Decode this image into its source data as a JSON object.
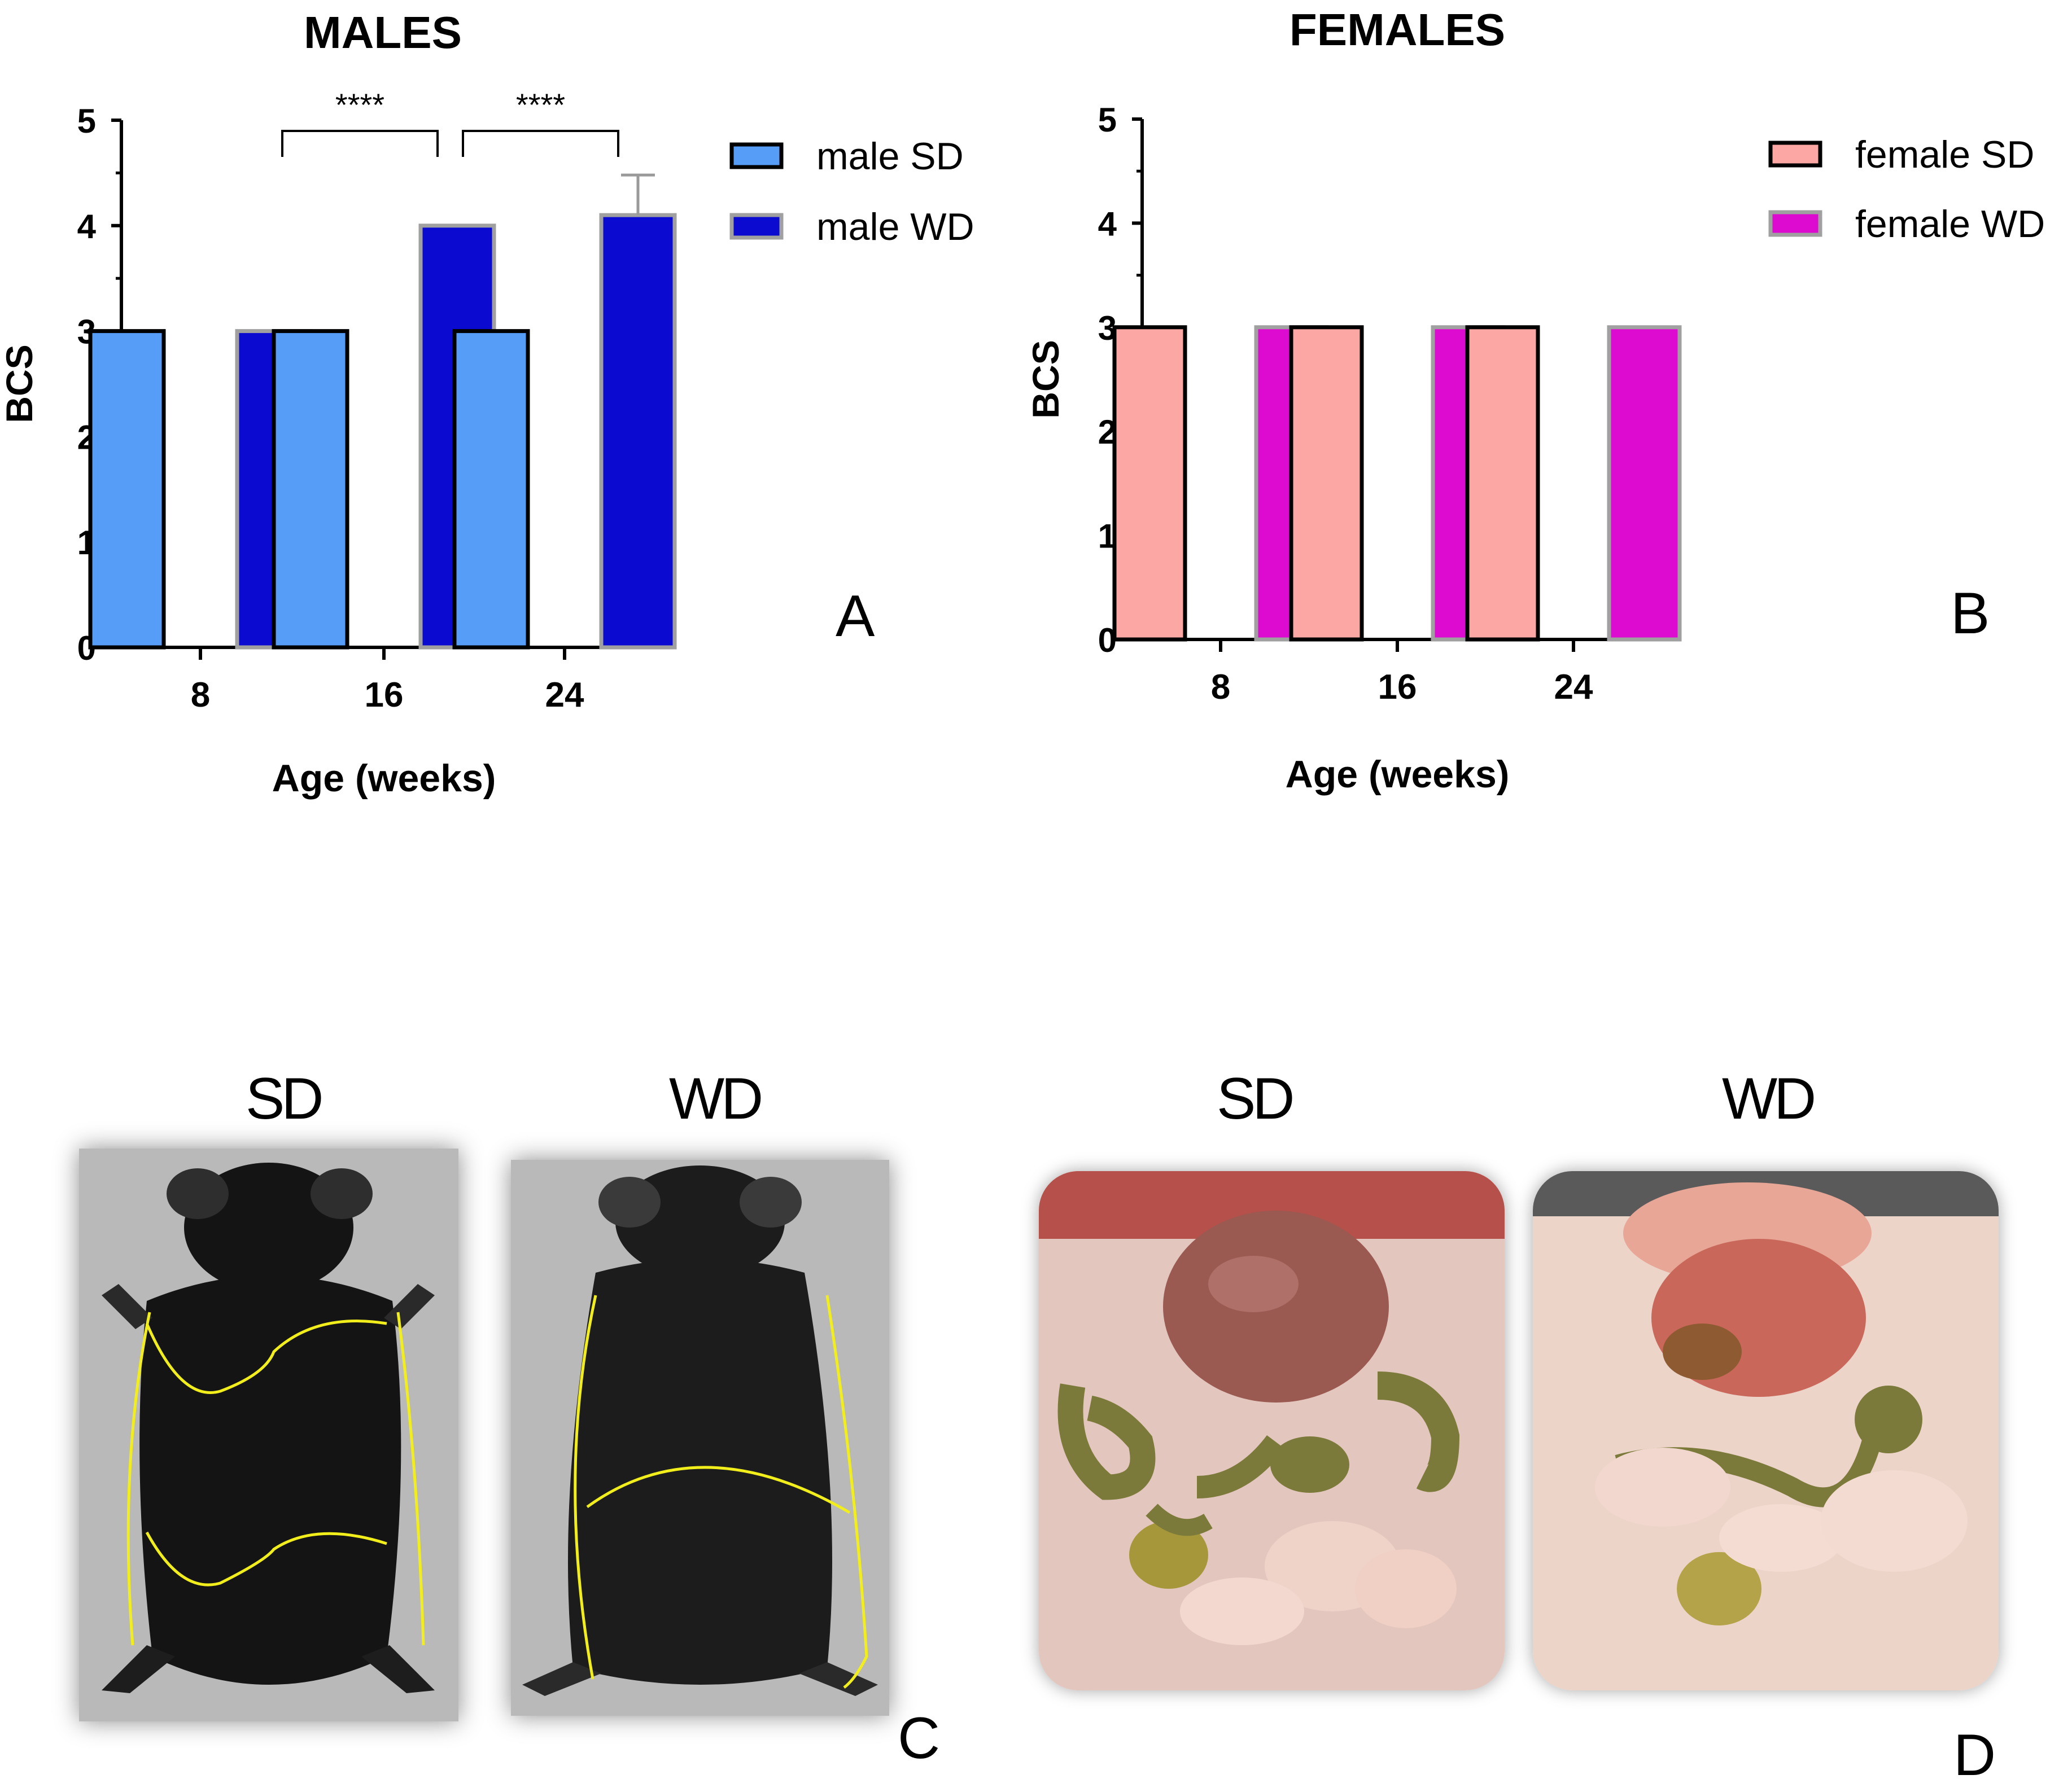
{
  "chart_data": [
    {
      "type": "bar",
      "title": "MALES",
      "xlabel": "Age (weeks)",
      "ylabel": "BCS",
      "ylim": [
        0,
        5
      ],
      "yticks": [
        "0",
        "1",
        "2",
        "3",
        "4",
        "5"
      ],
      "categories": [
        "8",
        "16",
        "24"
      ],
      "series": [
        {
          "name": "male SD",
          "values": [
            3,
            3,
            3
          ],
          "errors": [
            0,
            0,
            0
          ],
          "color": "#569df8",
          "border": "#000000"
        },
        {
          "name": "male WD",
          "values": [
            3,
            4,
            4.1
          ],
          "errors": [
            0,
            0,
            0.38
          ],
          "color": "#0a0ad0",
          "border": "#a0a0a0"
        }
      ],
      "significance": [
        {
          "category": "16",
          "label": "****"
        },
        {
          "category": "24",
          "label": "****"
        }
      ],
      "panel": "A"
    },
    {
      "type": "bar",
      "title": "FEMALES",
      "xlabel": "Age (weeks)",
      "ylabel": "BCS",
      "ylim": [
        0,
        5
      ],
      "yticks": [
        "0",
        "1",
        "2",
        "3",
        "4",
        "5"
      ],
      "categories": [
        "8",
        "16",
        "24"
      ],
      "series": [
        {
          "name": "female SD",
          "values": [
            3,
            3,
            3
          ],
          "errors": [
            0,
            0,
            0
          ],
          "color": "#fca7a4",
          "border": "#000000"
        },
        {
          "name": "female WD",
          "values": [
            3,
            3,
            3
          ],
          "errors": [
            0,
            0,
            0
          ],
          "color": "#dd0bcf",
          "border": "#a0a0a0"
        }
      ],
      "significance": [],
      "panel": "B"
    }
  ],
  "photos": {
    "mice": {
      "sd_title": "SD",
      "wd_title": "WD",
      "panel": "C"
    },
    "organs": {
      "sd_title": "SD",
      "wd_title": "WD",
      "panel": "D"
    }
  },
  "colors": {
    "outline_yellow": "#f2ee1c",
    "mouse_black": "#141414",
    "tissue_pink": "#e8c2b8",
    "liver": "#9a5a52",
    "intestine": "#7c7a3a"
  }
}
